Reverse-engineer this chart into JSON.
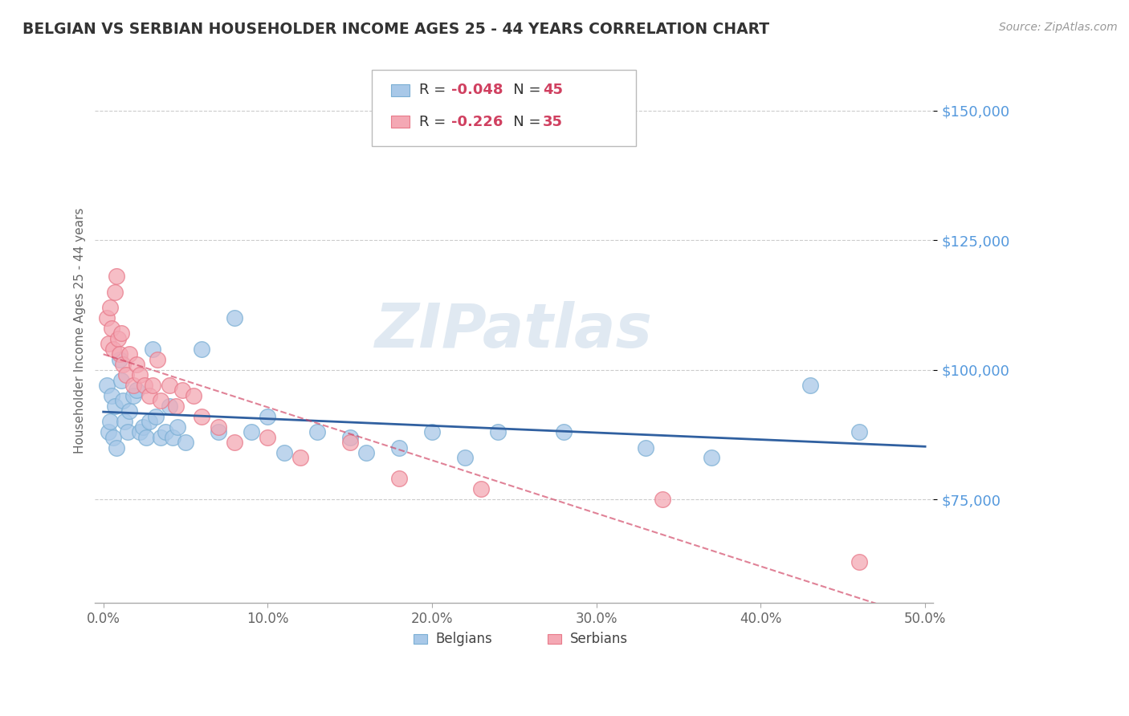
{
  "title": "BELGIAN VS SERBIAN HOUSEHOLDER INCOME AGES 25 - 44 YEARS CORRELATION CHART",
  "source": "Source: ZipAtlas.com",
  "ylabel": "Householder Income Ages 25 - 44 years",
  "xlabel_ticks": [
    "0.0%",
    "10.0%",
    "20.0%",
    "30.0%",
    "40.0%",
    "50.0%"
  ],
  "ytick_labels": [
    "$75,000",
    "$100,000",
    "$125,000",
    "$150,000"
  ],
  "ytick_values": [
    75000,
    100000,
    125000,
    150000
  ],
  "ylim": [
    55000,
    160000
  ],
  "xlim": [
    -0.005,
    0.505
  ],
  "belgian_R": "-0.048",
  "belgian_N": "45",
  "serbian_R": "-0.226",
  "serbian_N": "35",
  "belgian_color": "#a8c8e8",
  "serbian_color": "#f4a8b4",
  "belgian_edge_color": "#7bafd4",
  "serbian_edge_color": "#e87a8a",
  "belgian_line_color": "#3060a0",
  "serbian_line_color": "#d04060",
  "watermark": "ZIPatlas",
  "belgians_x": [
    0.002,
    0.003,
    0.004,
    0.005,
    0.006,
    0.007,
    0.008,
    0.01,
    0.011,
    0.012,
    0.013,
    0.015,
    0.016,
    0.018,
    0.02,
    0.022,
    0.024,
    0.026,
    0.028,
    0.03,
    0.032,
    0.035,
    0.038,
    0.04,
    0.042,
    0.045,
    0.05,
    0.06,
    0.07,
    0.08,
    0.09,
    0.1,
    0.11,
    0.13,
    0.15,
    0.16,
    0.18,
    0.2,
    0.22,
    0.24,
    0.28,
    0.33,
    0.37,
    0.43,
    0.46
  ],
  "belgians_y": [
    97000,
    88000,
    90000,
    95000,
    87000,
    93000,
    85000,
    102000,
    98000,
    94000,
    90000,
    88000,
    92000,
    95000,
    96000,
    88000,
    89000,
    87000,
    90000,
    104000,
    91000,
    87000,
    88000,
    93000,
    87000,
    89000,
    86000,
    104000,
    88000,
    110000,
    88000,
    91000,
    84000,
    88000,
    87000,
    84000,
    85000,
    88000,
    83000,
    88000,
    88000,
    85000,
    83000,
    97000,
    88000
  ],
  "serbians_x": [
    0.002,
    0.003,
    0.004,
    0.005,
    0.006,
    0.007,
    0.008,
    0.009,
    0.01,
    0.011,
    0.012,
    0.014,
    0.016,
    0.018,
    0.02,
    0.022,
    0.025,
    0.028,
    0.03,
    0.033,
    0.035,
    0.04,
    0.044,
    0.048,
    0.055,
    0.06,
    0.07,
    0.08,
    0.1,
    0.12,
    0.15,
    0.18,
    0.23,
    0.34,
    0.46
  ],
  "serbians_y": [
    110000,
    105000,
    112000,
    108000,
    104000,
    115000,
    118000,
    106000,
    103000,
    107000,
    101000,
    99000,
    103000,
    97000,
    101000,
    99000,
    97000,
    95000,
    97000,
    102000,
    94000,
    97000,
    93000,
    96000,
    95000,
    91000,
    89000,
    86000,
    87000,
    83000,
    86000,
    79000,
    77000,
    75000,
    63000
  ],
  "background_color": "#ffffff",
  "grid_color": "#cccccc",
  "title_color": "#333333",
  "axis_label_color": "#666666",
  "ytick_color": "#5599dd",
  "text_color": "#333333",
  "r_color": "#d04060",
  "n_color": "#d04060"
}
